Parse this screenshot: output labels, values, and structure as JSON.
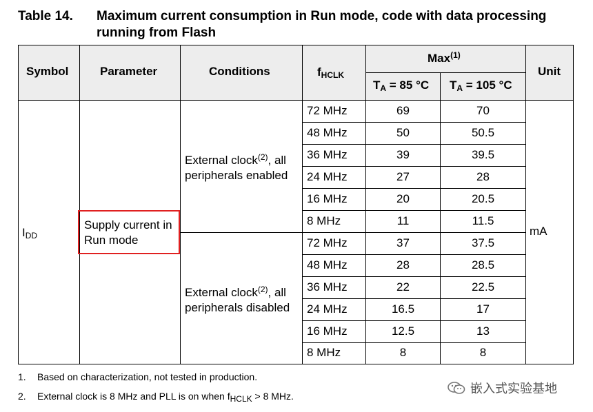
{
  "caption": {
    "label": "Table 14.",
    "title": "Maximum current consumption in Run mode, code with data processing running from Flash"
  },
  "headers": {
    "symbol": "Symbol",
    "parameter": "Parameter",
    "conditions": "Conditions",
    "fhclk_main": "f",
    "fhclk_sub": "HCLK",
    "max": "Max",
    "max_note": "(1)",
    "ta85_pre": "T",
    "ta85_sub": "A",
    "ta85_post": " = 85 °C",
    "ta105_pre": "T",
    "ta105_sub": "A",
    "ta105_post": " = 105 °C",
    "unit": "Unit"
  },
  "body": {
    "symbol_main": "I",
    "symbol_sub": "DD",
    "parameter_line1": "Supply current in",
    "parameter_line2": "Run mode",
    "unit": "mA",
    "groups": [
      {
        "condition_pre": "External clock",
        "condition_note": "(2)",
        "condition_post": ", all",
        "condition_line2": "peripherals enabled",
        "rows": [
          {
            "freq": "72 MHz",
            "ta85": "69",
            "ta105": "70"
          },
          {
            "freq": "48 MHz",
            "ta85": "50",
            "ta105": "50.5"
          },
          {
            "freq": "36 MHz",
            "ta85": "39",
            "ta105": "39.5"
          },
          {
            "freq": "24 MHz",
            "ta85": "27",
            "ta105": "28"
          },
          {
            "freq": "16 MHz",
            "ta85": "20",
            "ta105": "20.5"
          },
          {
            "freq": "8 MHz",
            "ta85": "11",
            "ta105": "11.5"
          }
        ]
      },
      {
        "condition_pre": "External clock",
        "condition_note": "(2)",
        "condition_post": ", all",
        "condition_line2": "peripherals disabled",
        "rows": [
          {
            "freq": "72 MHz",
            "ta85": "37",
            "ta105": "37.5"
          },
          {
            "freq": "48 MHz",
            "ta85": "28",
            "ta105": "28.5"
          },
          {
            "freq": "36 MHz",
            "ta85": "22",
            "ta105": "22.5"
          },
          {
            "freq": "24 MHz",
            "ta85": "16.5",
            "ta105": "17"
          },
          {
            "freq": "16 MHz",
            "ta85": "12.5",
            "ta105": "13"
          },
          {
            "freq": "8 MHz",
            "ta85": "8",
            "ta105": "8"
          }
        ]
      }
    ]
  },
  "footnotes": [
    {
      "num": "1.",
      "text": "Based on characterization, not tested in production."
    },
    {
      "num": "2.",
      "text_pre": "External clock is 8 MHz and PLL is on when f",
      "text_sub": "HCLK",
      "text_post": " > 8 MHz."
    }
  ],
  "watermark": {
    "text": "嵌入式实验基地",
    "icon": "wechat-icon"
  },
  "colors": {
    "header_bg": "#ededed",
    "highlight": "#e02020"
  }
}
